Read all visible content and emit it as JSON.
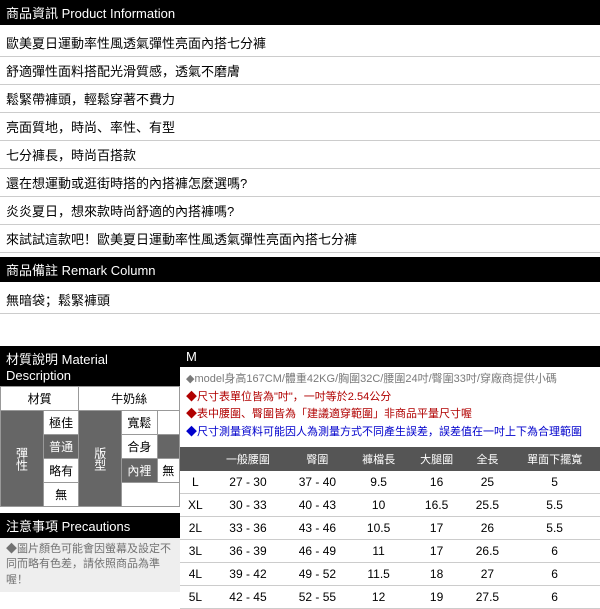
{
  "product_info": {
    "header": "商品資訊 Product Information",
    "lines": [
      "歐美夏日運動率性風透氣彈性亮面內搭七分褲",
      "舒適彈性面料搭配光滑質感，透氣不磨膚",
      "鬆緊帶褲頭，輕鬆穿著不費力",
      "亮面質地，時尚、率性、有型",
      "七分褲長，時尚百搭款",
      "還在想運動或逛街時搭的內搭褲怎麼選嗎?",
      "炎炎夏日，想來款時尚舒適的內搭褲嗎?",
      "來試試這款吧！歐美夏日運動率性風透氣彈性亮面內搭七分褲"
    ]
  },
  "remark": {
    "header": "商品備註 Remark Column",
    "line": "無暗袋；鬆緊褲頭"
  },
  "material": {
    "header": "材質說明 Material Description",
    "label_material": "材質",
    "material_value": "牛奶絲",
    "elastic": {
      "vhead": "彈性",
      "opts": [
        "極佳",
        "普通",
        "略有",
        "無"
      ],
      "sel": "普通"
    },
    "fit": {
      "vhead": "版型",
      "opts": [
        "寬鬆",
        "合身"
      ],
      "sel": "合身"
    },
    "lining": {
      "vhead": "內裡",
      "value": "無"
    }
  },
  "precautions": {
    "header": "注意事項 Precautions",
    "note": "◆圖片顏色可能會因螢幕及設定不同而略有色差，請依照商品為準喔！"
  },
  "size_section": {
    "header": "M",
    "notes": [
      {
        "cls": "gray",
        "text": "◆model身高167CM/體重42KG/胸圍32C/腰圍24吋/臀圍33吋/穿廠商提供小碼"
      },
      {
        "cls": "red",
        "text": "◆尺寸表單位皆為\"吋\"，一吋等於2.54公分"
      },
      {
        "cls": "red",
        "text": "◆表中腰圍、臀圍皆為「建議適穿範圍」非商品平量尺寸喔"
      },
      {
        "cls": "blue",
        "text": "◆尺寸測量資料可能因人為測量方式不同產生誤差，誤差值在一吋上下為合理範圍"
      }
    ],
    "columns": [
      "",
      "一般腰圍",
      "臀圍",
      "褲檔長",
      "大腿圍",
      "全長",
      "單面下擺寬"
    ],
    "rows": [
      [
        "L",
        "27 - 30",
        "37 - 40",
        "9.5",
        "16",
        "25",
        "5"
      ],
      [
        "XL",
        "30 - 33",
        "40 - 43",
        "10",
        "16.5",
        "25.5",
        "5.5"
      ],
      [
        "2L",
        "33 - 36",
        "43 - 46",
        "10.5",
        "17",
        "26",
        "5.5"
      ],
      [
        "3L",
        "36 - 39",
        "46 - 49",
        "11",
        "17",
        "26.5",
        "6"
      ],
      [
        "4L",
        "39 - 42",
        "49 - 52",
        "11.5",
        "18",
        "27",
        "6"
      ],
      [
        "5L",
        "42 - 45",
        "52 - 55",
        "12",
        "19",
        "27.5",
        "6"
      ]
    ]
  }
}
